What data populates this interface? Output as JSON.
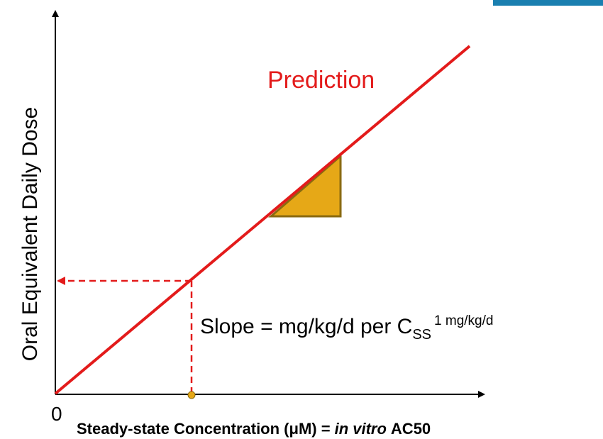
{
  "diagram": {
    "curve_label": "Prediction",
    "slope_text": {
      "main": "Slope = mg/kg/d per C",
      "subscript": "SS",
      "superscript": "1 mg/kg/d"
    },
    "y_axis_label": "Oral Equivalent Daily Dose",
    "origin_label": "0",
    "x_axis_label": {
      "part1": "Steady-state Concentration (μM) =",
      "italic": "in vitro",
      "part2": "AC50"
    }
  }
}
